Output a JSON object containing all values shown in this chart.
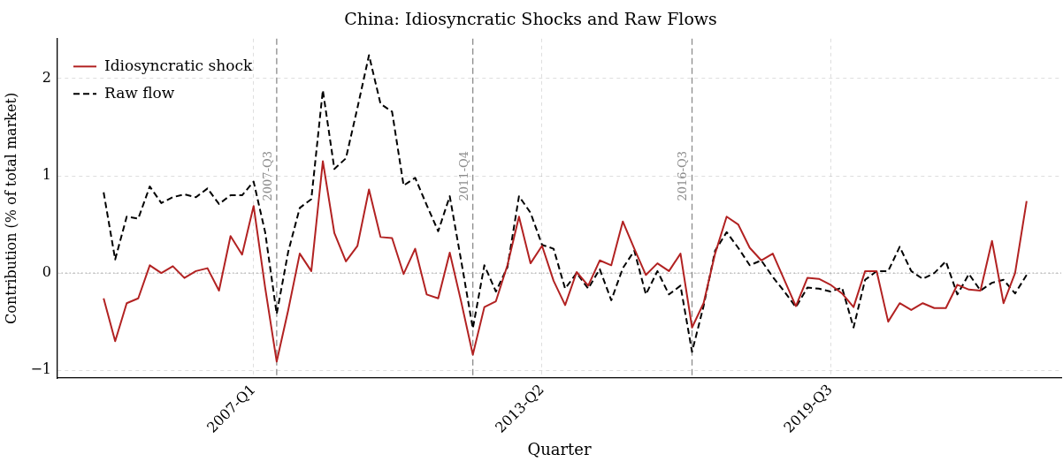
{
  "chart_data": {
    "type": "line",
    "title": "China: Idiosyncratic Shocks and Raw Flows",
    "xlabel": "Quarter",
    "ylabel": "Contribution (% of total market)",
    "x": [
      "2003-10",
      "2004-01",
      "2004-04",
      "2004-07",
      "2004-10",
      "2005-01",
      "2005-04",
      "2005-07",
      "2005-10",
      "2006-01",
      "2006-04",
      "2006-07",
      "2006-10",
      "2007-01",
      "2007-04",
      "2007-07",
      "2007-10",
      "2008-01",
      "2008-04",
      "2008-07",
      "2008-10",
      "2009-01",
      "2009-04",
      "2009-07",
      "2009-10",
      "2010-01",
      "2010-04",
      "2010-07",
      "2010-10",
      "2011-01",
      "2011-04",
      "2011-07",
      "2011-10",
      "2012-01",
      "2012-04",
      "2012-07",
      "2012-10",
      "2013-01",
      "2013-04",
      "2013-07",
      "2013-10",
      "2014-01",
      "2014-04",
      "2014-07",
      "2014-10",
      "2015-01",
      "2015-04",
      "2015-07",
      "2015-10",
      "2016-01",
      "2016-04",
      "2016-07",
      "2016-10",
      "2017-01",
      "2017-04",
      "2017-07",
      "2017-10",
      "2018-01",
      "2018-04",
      "2018-07",
      "2018-10",
      "2019-01",
      "2019-04",
      "2019-07",
      "2019-10",
      "2020-01",
      "2020-04",
      "2020-07",
      "2020-10",
      "2021-01",
      "2021-04",
      "2021-07",
      "2021-10",
      "2022-01",
      "2022-04",
      "2022-07",
      "2022-10",
      "2023-01",
      "2023-04",
      "2023-07",
      "2023-10"
    ],
    "series": [
      {
        "name": "Idiosyncratic shock",
        "color": "#b22222",
        "line_style": "solid",
        "values": [
          -0.26,
          -0.7,
          -0.31,
          -0.26,
          0.08,
          0.0,
          0.07,
          -0.05,
          0.02,
          0.05,
          -0.18,
          0.38,
          0.19,
          0.69,
          -0.15,
          -0.91,
          -0.38,
          0.2,
          0.02,
          1.15,
          0.41,
          0.12,
          0.28,
          0.86,
          0.37,
          0.36,
          -0.01,
          0.25,
          -0.22,
          -0.26,
          0.21,
          -0.3,
          -0.84,
          -0.35,
          -0.29,
          0.08,
          0.58,
          0.1,
          0.28,
          -0.08,
          -0.33,
          0.01,
          -0.13,
          0.13,
          0.08,
          0.53,
          0.25,
          -0.02,
          0.1,
          0.02,
          0.2,
          -0.56,
          -0.31,
          0.2,
          0.58,
          0.5,
          0.26,
          0.13,
          0.2,
          -0.07,
          -0.34,
          -0.05,
          -0.06,
          -0.12,
          -0.21,
          -0.35,
          0.02,
          0.02,
          -0.5,
          -0.31,
          -0.38,
          -0.31,
          -0.36,
          -0.36,
          -0.12,
          -0.17,
          -0.18,
          0.33,
          -0.31,
          0.0,
          0.74
        ]
      },
      {
        "name": "Raw flow",
        "color": "#000000",
        "line_style": "dashed",
        "values": [
          0.83,
          0.14,
          0.58,
          0.56,
          0.89,
          0.72,
          0.78,
          0.81,
          0.78,
          0.87,
          0.71,
          0.8,
          0.8,
          0.94,
          0.42,
          -0.42,
          0.22,
          0.67,
          0.76,
          1.88,
          1.07,
          1.18,
          1.7,
          2.24,
          1.74,
          1.66,
          0.9,
          0.98,
          0.7,
          0.43,
          0.79,
          0.12,
          -0.57,
          0.08,
          -0.19,
          0.06,
          0.79,
          0.62,
          0.29,
          0.25,
          -0.16,
          0.0,
          -0.16,
          0.04,
          -0.28,
          0.05,
          0.23,
          -0.22,
          0.02,
          -0.22,
          -0.13,
          -0.81,
          -0.34,
          0.23,
          0.42,
          0.26,
          0.08,
          0.13,
          -0.04,
          -0.19,
          -0.35,
          -0.15,
          -0.16,
          -0.19,
          -0.15,
          -0.56,
          -0.07,
          0.02,
          0.02,
          0.27,
          0.02,
          -0.06,
          0.0,
          0.12,
          -0.22,
          -0.01,
          -0.18,
          -0.1,
          -0.07,
          -0.21,
          -0.02
        ]
      }
    ],
    "xlim": [
      "2002-10",
      "2024-07"
    ],
    "xticks": [
      {
        "value": "2007-01",
        "label": "2007-Q1"
      },
      {
        "value": "2013-04",
        "label": "2013-Q2"
      },
      {
        "value": "2019-07",
        "label": "2019-Q3"
      }
    ],
    "ylim": [
      -1.08,
      2.41
    ],
    "yticks": [
      {
        "value": -1,
        "label": "−1"
      },
      0,
      1,
      2
    ],
    "ref_lines": [
      {
        "axis": "x",
        "value": "2007-07",
        "label": "2007-Q3",
        "color": "#8c8c8c",
        "line_style": "dashed"
      },
      {
        "axis": "x",
        "value": "2011-10",
        "label": "2011-Q4",
        "color": "#8c8c8c",
        "line_style": "dashed"
      },
      {
        "axis": "x",
        "value": "2016-07",
        "label": "2016-Q3",
        "color": "#8c8c8c",
        "line_style": "dashed"
      },
      {
        "axis": "y",
        "value": 0,
        "color": "#b0b0b0",
        "line_style": "dotted"
      }
    ],
    "grid": true,
    "legend": "top left"
  }
}
